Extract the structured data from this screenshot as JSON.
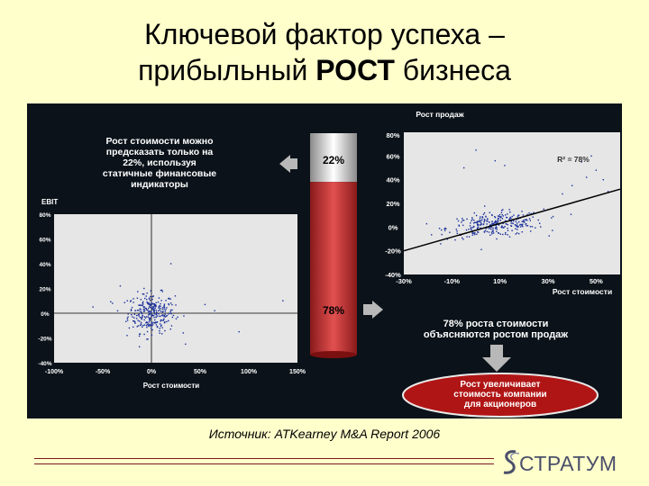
{
  "slide": {
    "title_line1": "Ключевой фактор успеха –",
    "title_line2_pre": "прибыльный ",
    "title_line2_bold": "РОСТ",
    "title_line2_post": " бизнеса",
    "source": "Источник: ATKearney M&A Report 2006",
    "logo_text": "СТРАТУМ"
  },
  "callouts": {
    "top_left": [
      "Рост стоимости можно",
      "предсказать только на",
      "22%, используя",
      "статичные финансовые",
      "индикаторы"
    ],
    "bottom_right": [
      "78% роста стоимости",
      "объясняются ростом продаж"
    ],
    "ellipse": [
      "Рост увеличивает",
      "стоимость компании",
      "для акционеров"
    ]
  },
  "colors": {
    "background": "#ffffcc",
    "panel": "#0b1219",
    "plot_bg": "#e6e6e6",
    "points": "#1a2f9a",
    "bar_top": "#ffffff",
    "bar_bottom": "#cc2a2a",
    "ellipse": "#b01515",
    "arrow": "#b8b8b8"
  },
  "chart_data": [
    {
      "type": "scatter",
      "name": "ebit",
      "title": "",
      "xlabel": "Рост стоимости",
      "ylabel": "EBIT",
      "x_ticks": [
        "-100%",
        "-50%",
        "0%",
        "50%",
        "100%",
        "150%"
      ],
      "y_ticks": [
        "80%",
        "60%",
        "40%",
        "20%",
        "0%",
        "-20%",
        "-40%"
      ],
      "xlim": [
        -100,
        150
      ],
      "ylim": [
        -40,
        80
      ],
      "grid": false,
      "cluster": {
        "x_center": 0,
        "y_center": 0,
        "x_spread": 12,
        "y_spread": 8,
        "count": 300
      },
      "outliers": [
        [
          -32,
          22
        ],
        [
          -25,
          -18
        ],
        [
          -40,
          8
        ],
        [
          55,
          7
        ],
        [
          65,
          2
        ],
        [
          135,
          10
        ],
        [
          90,
          -15
        ],
        [
          -60,
          5
        ],
        [
          20,
          40
        ],
        [
          35,
          -25
        ]
      ]
    },
    {
      "type": "scatter",
      "name": "sales",
      "title": "Рост продаж",
      "xlabel": "Рост стоимости",
      "ylabel": "",
      "x_ticks": [
        "-30%",
        "-10%",
        "10%",
        "30%",
        "50%"
      ],
      "y_ticks": [
        "60%",
        "40%",
        "20%",
        "0%",
        "-20%",
        "-40%"
      ],
      "y_top_tick": "80%",
      "xlim": [
        -30,
        60
      ],
      "ylim": [
        -40,
        80
      ],
      "grid": false,
      "annotation": "R² = 78%",
      "trend": {
        "x": [
          -30,
          60
        ],
        "y": [
          -20,
          32
        ]
      },
      "cluster": {
        "x_center": 8,
        "y_center": 2,
        "x_spread": 10,
        "y_spread": 5,
        "count": 300
      },
      "spread_points": [
        [
          48,
          60
        ],
        [
          44,
          55
        ],
        [
          50,
          48
        ],
        [
          46,
          42
        ],
        [
          53,
          40
        ],
        [
          40,
          35
        ],
        [
          55,
          30
        ],
        [
          36,
          28
        ],
        [
          -5,
          50
        ],
        [
          0,
          65
        ],
        [
          8,
          56
        ],
        [
          12,
          52
        ]
      ]
    },
    {
      "type": "bar",
      "name": "value_split",
      "categories": [
        "22%",
        "78%"
      ],
      "values": [
        22,
        78
      ],
      "stacked": true
    }
  ]
}
